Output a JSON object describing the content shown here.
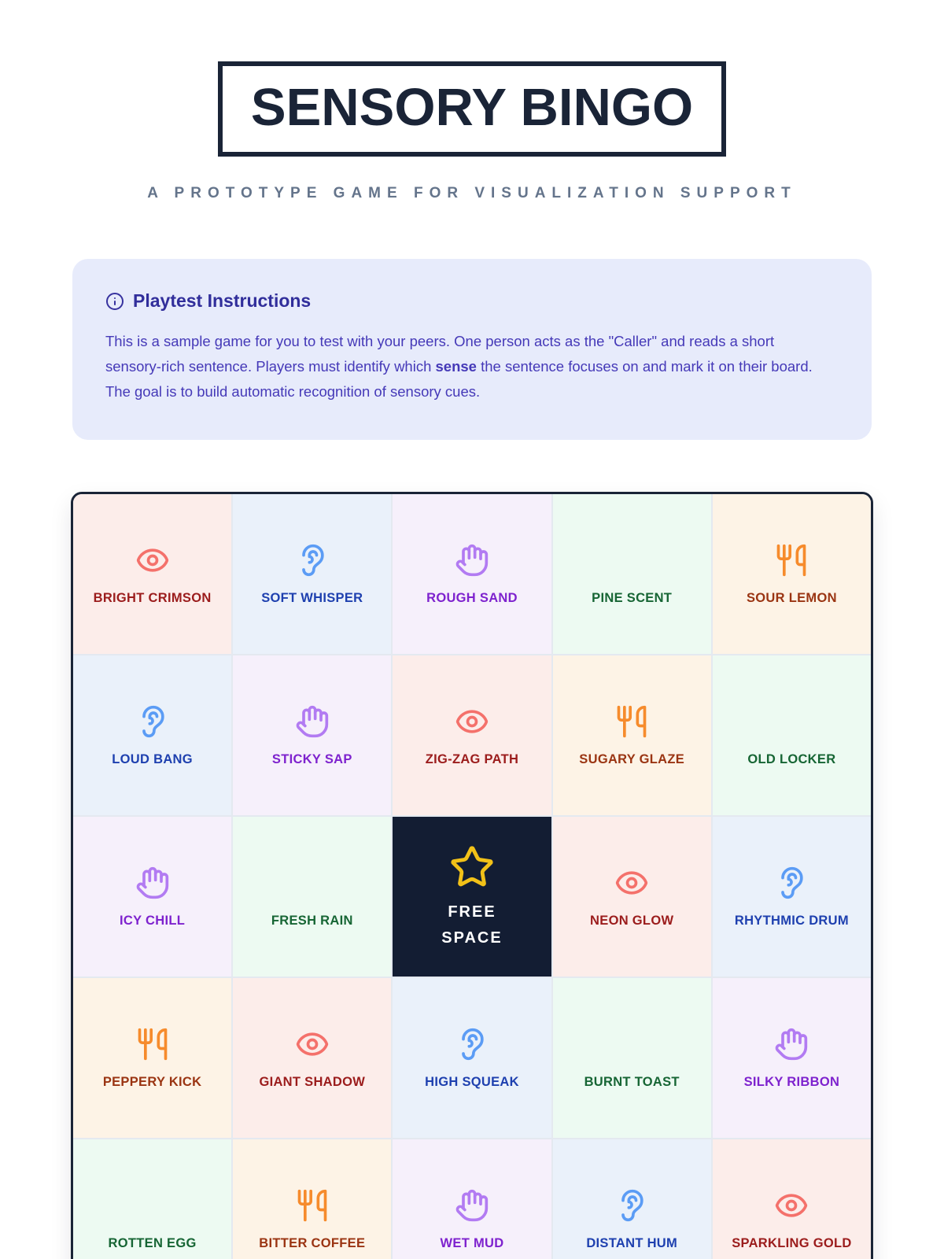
{
  "header": {
    "title": "SENSORY BINGO",
    "subtitle": "A PROTOTYPE GAME FOR VISUALIZATION SUPPORT"
  },
  "instructions": {
    "icon": "info-icon",
    "title": "Playtest Instructions",
    "body_before": "This is a sample game for you to test with your peers. One person acts as the \"Caller\" and reads a short sensory-rich sentence. Players must identify which ",
    "bold_word": "sense",
    "body_after": " the sentence focuses on and mark it on their board. The goal is to build automatic recognition of sensory cues."
  },
  "board": {
    "senses": {
      "sight": {
        "icon": "eye-icon",
        "bg": "#FCEDEA",
        "icon_color": "#F4716B",
        "label_color": "#9B1C1C"
      },
      "sound": {
        "icon": "ear-icon",
        "bg": "#EAF1FA",
        "icon_color": "#5B9CF5",
        "label_color": "#1E40AF"
      },
      "touch": {
        "icon": "hand-icon",
        "bg": "#F6F0FB",
        "icon_color": "#B27BF2",
        "label_color": "#7E22CE"
      },
      "smell": {
        "icon": "none",
        "bg": "#EDFAF2",
        "icon_color": "#16A34A",
        "label_color": "#166534"
      },
      "taste": {
        "icon": "utensils-icon",
        "bg": "#FDF3E6",
        "icon_color": "#F68B2C",
        "label_color": "#9A3412"
      }
    },
    "free_space": {
      "icon": "star-icon",
      "bg": "#131D33",
      "star_color": "#F2C118",
      "line1": "FREE",
      "line2": "SPACE"
    },
    "cells": [
      {
        "label": "BRIGHT CRIMSON",
        "sense": "sight"
      },
      {
        "label": "SOFT WHISPER",
        "sense": "sound"
      },
      {
        "label": "ROUGH SAND",
        "sense": "touch"
      },
      {
        "label": "PINE SCENT",
        "sense": "smell"
      },
      {
        "label": "SOUR LEMON",
        "sense": "taste"
      },
      {
        "label": "LOUD BANG",
        "sense": "sound"
      },
      {
        "label": "STICKY SAP",
        "sense": "touch"
      },
      {
        "label": "ZIG-ZAG PATH",
        "sense": "sight"
      },
      {
        "label": "SUGARY GLAZE",
        "sense": "taste"
      },
      {
        "label": "OLD LOCKER",
        "sense": "smell"
      },
      {
        "label": "ICY CHILL",
        "sense": "touch"
      },
      {
        "label": "FRESH RAIN",
        "sense": "smell"
      },
      {
        "label": "FREE SPACE",
        "sense": "free"
      },
      {
        "label": "NEON GLOW",
        "sense": "sight"
      },
      {
        "label": "RHYTHMIC DRUM",
        "sense": "sound"
      },
      {
        "label": "PEPPERY KICK",
        "sense": "taste"
      },
      {
        "label": "GIANT SHADOW",
        "sense": "sight"
      },
      {
        "label": "HIGH SQUEAK",
        "sense": "sound"
      },
      {
        "label": "BURNT TOAST",
        "sense": "smell"
      },
      {
        "label": "SILKY RIBBON",
        "sense": "touch"
      },
      {
        "label": "ROTTEN EGG",
        "sense": "smell"
      },
      {
        "label": "BITTER COFFEE",
        "sense": "taste"
      },
      {
        "label": "WET MUD",
        "sense": "touch"
      },
      {
        "label": "DISTANT HUM",
        "sense": "sound"
      },
      {
        "label": "SPARKLING GOLD",
        "sense": "sight"
      }
    ]
  }
}
